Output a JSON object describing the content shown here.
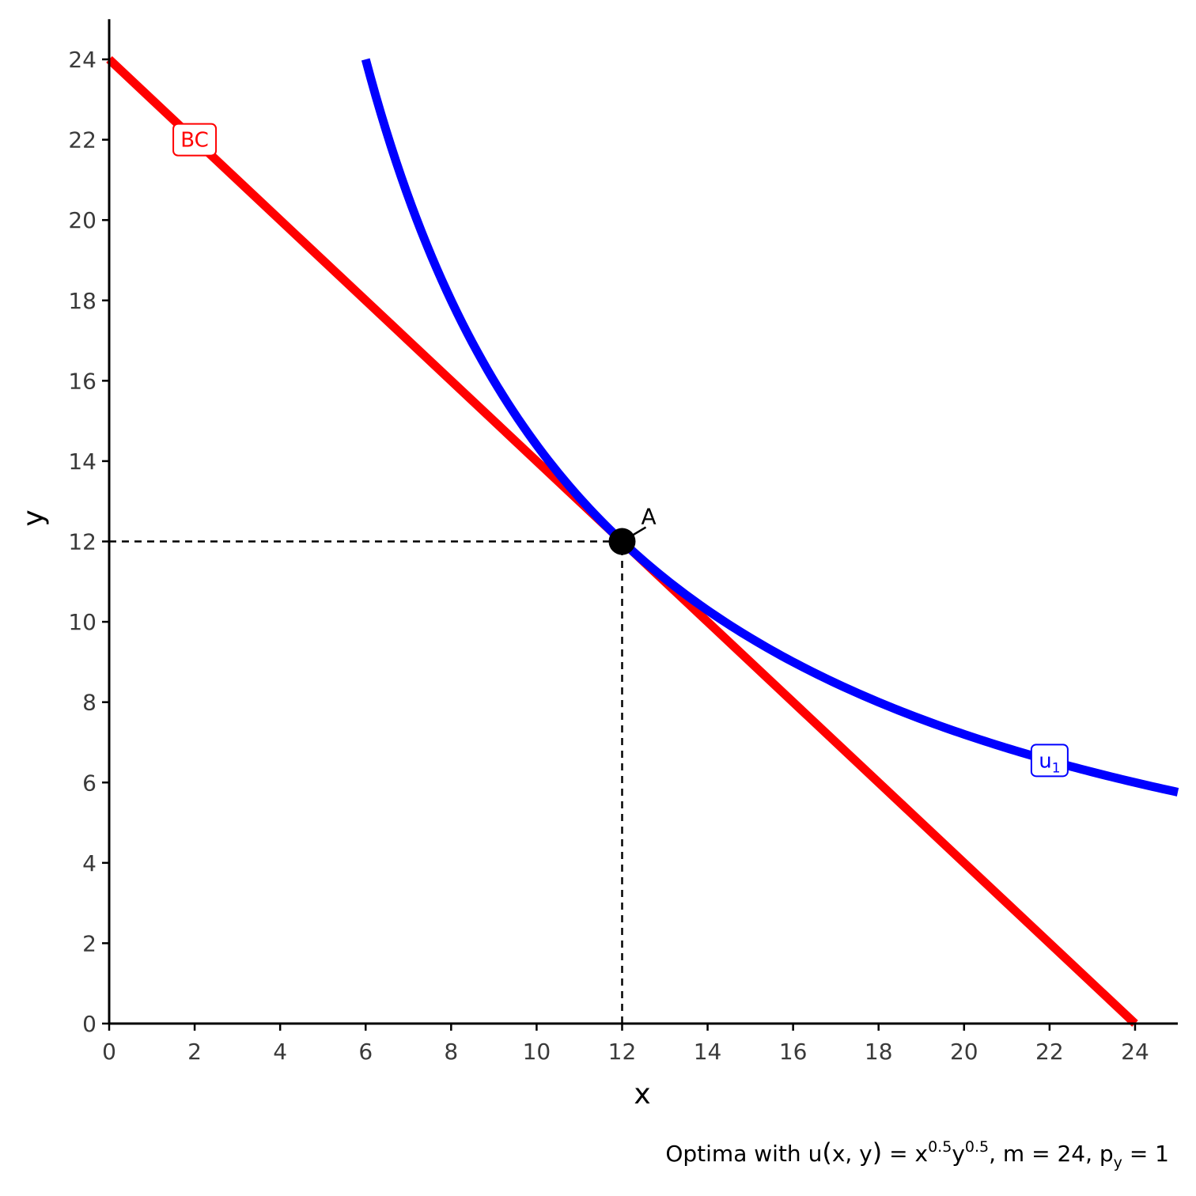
{
  "chart_data": {
    "type": "line",
    "title": "",
    "xlabel": "x",
    "ylabel": "y",
    "xlim": [
      0,
      25
    ],
    "ylim": [
      0,
      25
    ],
    "grid": false,
    "x_ticks": [
      0,
      2,
      4,
      6,
      8,
      10,
      12,
      14,
      16,
      18,
      20,
      22,
      24
    ],
    "y_ticks": [
      0,
      2,
      4,
      6,
      8,
      10,
      12,
      14,
      16,
      18,
      20,
      22,
      24
    ],
    "series": [
      {
        "name": "BC",
        "color": "#ff0000",
        "points": [
          [
            0,
            24
          ],
          [
            24,
            0
          ]
        ]
      },
      {
        "name": "u",
        "name_subscript": "1",
        "color": "#0000ff",
        "points": [
          [
            6,
            24
          ],
          [
            7,
            20.57
          ],
          [
            8,
            18
          ],
          [
            9,
            16
          ],
          [
            10,
            14.4
          ],
          [
            11,
            13.09
          ],
          [
            12,
            12
          ],
          [
            13,
            11.08
          ],
          [
            14,
            10.29
          ],
          [
            15,
            9.6
          ],
          [
            16,
            9
          ],
          [
            17,
            8.47
          ],
          [
            18,
            8
          ],
          [
            19,
            7.58
          ],
          [
            20,
            7.2
          ],
          [
            21,
            6.86
          ],
          [
            22,
            6.55
          ],
          [
            23,
            6.26
          ],
          [
            24,
            6
          ],
          [
            25,
            5.76
          ]
        ]
      }
    ],
    "curve_labels": [
      {
        "series": "BC",
        "x": 2,
        "y": 22
      },
      {
        "series": "u",
        "x": 22,
        "y": 6.55
      }
    ],
    "points": [
      {
        "label": "A",
        "x": 12,
        "y": 12,
        "color": "#000000"
      }
    ],
    "reference_lines": [
      {
        "style": "dashed",
        "from": [
          0,
          12
        ],
        "to": [
          12,
          12
        ]
      },
      {
        "style": "dashed",
        "from": [
          12,
          0
        ],
        "to": [
          12,
          12
        ]
      }
    ],
    "caption": {
      "prefix": "Optima with ",
      "func": "u",
      "paren_open": "(",
      "args": "x, y",
      "paren_close": ")",
      "eq": " = ",
      "base1": "x",
      "exp1": "0.5",
      "base2": "y",
      "exp2": "0.5",
      "rest": ", m = 24, ",
      "p_base": "p",
      "p_sub": "y",
      "p_rest": " = 1"
    }
  }
}
